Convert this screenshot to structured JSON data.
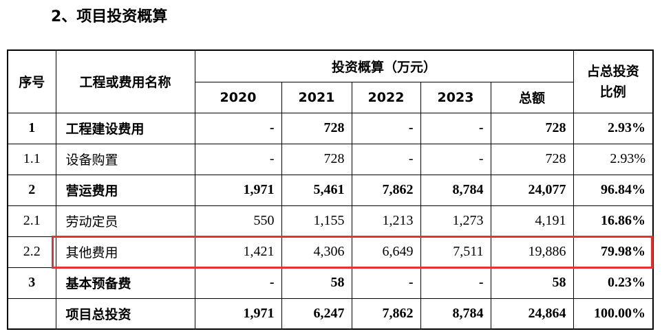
{
  "title": "2、项目投资概算",
  "table": {
    "header": {
      "seq": "序号",
      "name": "工程或费用名称",
      "group": "投资概算（万元）",
      "years": [
        "2020",
        "2021",
        "2022",
        "2023",
        "总额"
      ],
      "ratio": "占总投资比例"
    },
    "rows": [
      [
        "1",
        "工程建设费用",
        "-",
        "728",
        "-",
        "-",
        "728",
        "2.93%"
      ],
      [
        "1.1",
        "设备购置",
        "-",
        "728",
        "-",
        "-",
        "728",
        "2.93%"
      ],
      [
        "2",
        "营运费用",
        "1,971",
        "5,461",
        "7,862",
        "8,784",
        "24,077",
        "96.84%"
      ],
      [
        "2.1",
        "劳动定员",
        "550",
        "1,155",
        "1,213",
        "1,273",
        "4,191",
        "16.86%"
      ],
      [
        "2.2",
        "其他费用",
        "1,421",
        "4,306",
        "6,649",
        "7,511",
        "19,886",
        "79.98%"
      ],
      [
        "3",
        "基本预备费",
        "-",
        "58",
        "-",
        "-",
        "58",
        "0.23%"
      ]
    ],
    "total": [
      "项目总投资",
      "1,971",
      "6,247",
      "7,862",
      "8,784",
      "24,864",
      "100.00%"
    ]
  }
}
